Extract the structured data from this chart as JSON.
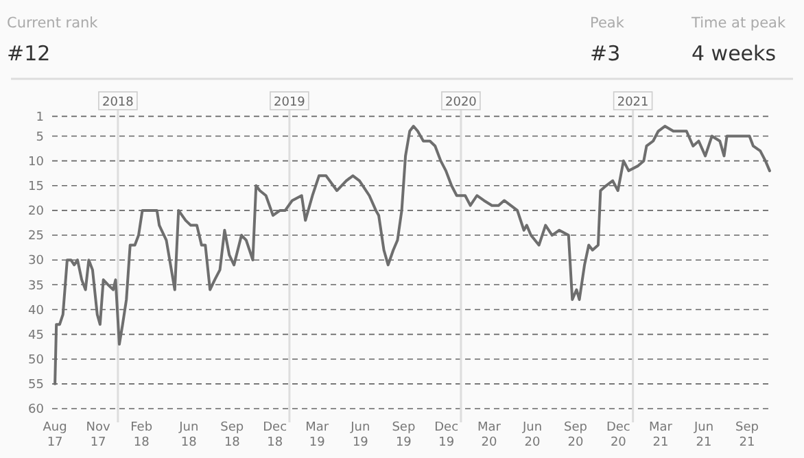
{
  "chart_data": {
    "type": "line",
    "annotations": [
      "Current rank",
      "#12",
      "Peak",
      "#3",
      "Time at peak",
      "4 weeks"
    ],
    "series": [
      {
        "color": "#6e6e6e",
        "x": [
          "2017-08-20",
          "2017-08-23",
          "2017-08-30",
          "2017-09-06",
          "2017-09-15",
          "2017-09-23",
          "2017-09-30",
          "2017-10-07",
          "2017-10-16",
          "2017-10-24",
          "2017-10-31",
          "2017-11-08",
          "2017-11-18",
          "2017-11-24",
          "2017-12-01",
          "2017-12-11",
          "2017-12-22",
          "2017-12-27",
          "2018-01-04",
          "2018-01-11",
          "2018-01-19",
          "2018-01-27",
          "2018-02-06",
          "2018-02-14",
          "2018-02-22",
          "2018-03-25",
          "2018-03-30",
          "2018-04-14",
          "2018-05-02",
          "2018-05-10",
          "2018-05-25",
          "2018-06-05",
          "2018-06-18",
          "2018-06-28",
          "2018-07-06",
          "2018-07-16",
          "2018-07-26",
          "2018-08-06",
          "2018-08-16",
          "2018-08-26",
          "2018-09-05",
          "2018-09-21",
          "2018-10-01",
          "2018-10-15",
          "2018-10-22",
          "2018-10-30",
          "2018-11-12",
          "2018-11-27",
          "2018-12-12",
          "2018-12-23",
          "2019-01-07",
          "2019-01-27",
          "2019-02-04",
          "2019-02-19",
          "2019-03-05",
          "2019-03-20",
          "2019-04-12",
          "2019-05-02",
          "2019-05-16",
          "2019-05-30",
          "2019-06-20",
          "2019-07-04",
          "2019-07-10",
          "2019-07-21",
          "2019-07-30",
          "2019-08-10",
          "2019-08-19",
          "2019-08-28",
          "2019-09-05",
          "2019-09-14",
          "2019-09-22",
          "2019-10-01",
          "2019-10-13",
          "2019-10-27",
          "2019-11-07",
          "2019-11-19",
          "2019-11-30",
          "2019-12-12",
          "2019-12-23",
          "2020-01-10",
          "2020-01-21",
          "2020-02-04",
          "2020-02-19",
          "2020-03-07",
          "2020-03-21",
          "2020-04-02",
          "2020-04-16",
          "2020-04-30",
          "2020-05-14",
          "2020-05-20",
          "2020-05-29",
          "2020-06-15",
          "2020-06-29",
          "2020-07-13",
          "2020-07-28",
          "2020-08-17",
          "2020-08-25",
          "2020-09-03",
          "2020-09-09",
          "2020-09-20",
          "2020-09-29",
          "2020-10-07",
          "2020-10-19",
          "2020-10-24",
          "2020-11-05",
          "2020-11-19",
          "2020-11-30",
          "2020-12-12",
          "2020-12-23",
          "2021-01-12",
          "2021-01-24",
          "2021-01-30",
          "2021-02-13",
          "2021-02-24",
          "2021-03-10",
          "2021-03-28",
          "2021-04-16",
          "2021-04-25",
          "2021-05-09",
          "2021-05-21",
          "2021-06-04",
          "2021-06-18",
          "2021-07-05",
          "2021-07-14",
          "2021-07-20",
          "2021-09-06",
          "2021-09-14",
          "2021-09-29",
          "2021-10-10",
          "2021-10-19"
        ],
        "values": [
          55,
          43,
          43,
          41,
          30,
          30,
          31,
          30,
          34,
          36,
          30,
          32,
          41,
          43,
          34,
          35,
          36,
          34,
          47,
          43,
          38,
          27,
          27,
          25,
          20,
          20,
          23,
          26,
          36,
          20,
          22,
          23,
          23,
          27,
          27,
          36,
          34,
          32,
          24,
          29,
          31,
          25,
          26,
          30,
          15,
          16,
          17,
          21,
          20,
          20,
          18,
          17,
          22,
          17,
          13,
          13,
          16,
          14,
          13,
          14,
          17,
          20,
          21,
          28,
          31,
          28,
          26,
          20,
          9,
          4,
          3,
          4,
          6,
          6,
          7,
          10,
          12,
          15,
          17,
          17,
          19,
          17,
          18,
          19,
          19,
          18,
          19,
          20,
          24,
          23,
          25,
          27,
          23,
          25,
          24,
          25,
          38,
          36,
          38,
          31,
          27,
          28,
          27,
          16,
          15,
          14,
          16,
          10,
          12,
          11,
          10,
          7,
          6,
          4,
          3,
          4,
          4,
          4,
          7,
          6,
          9,
          5,
          6,
          9,
          5,
          5,
          7,
          8,
          10,
          12
        ]
      }
    ],
    "xlim": [
      "2017-08-14",
      "2021-10-22"
    ],
    "xticks": [
      {
        "value": "2017-08-20",
        "label": "Aug 17"
      },
      {
        "value": "2017-11-20",
        "label": "Nov 17"
      },
      {
        "value": "2018-02-20",
        "label": "Feb 18"
      },
      {
        "value": "2018-06-01",
        "label": "Jun 18"
      },
      {
        "value": "2018-09-01",
        "label": "Sep 18"
      },
      {
        "value": "2018-12-01",
        "label": "Dec 18"
      },
      {
        "value": "2019-03-01",
        "label": "Mar 19"
      },
      {
        "value": "2019-06-01",
        "label": "Jun 19"
      },
      {
        "value": "2019-09-01",
        "label": "Sep 19"
      },
      {
        "value": "2019-12-01",
        "label": "Dec 19"
      },
      {
        "value": "2020-03-01",
        "label": "Mar 20"
      },
      {
        "value": "2020-06-01",
        "label": "Jun 20"
      },
      {
        "value": "2020-09-01",
        "label": "Sep 20"
      },
      {
        "value": "2020-12-01",
        "label": "Dec 20"
      },
      {
        "value": "2021-03-01",
        "label": "Mar 21"
      },
      {
        "value": "2021-06-01",
        "label": "Jun 21"
      },
      {
        "value": "2021-09-01",
        "label": "Sep 21"
      }
    ],
    "ylim": [
      60,
      1
    ],
    "yticks": [
      1,
      5,
      10,
      15,
      20,
      25,
      30,
      35,
      40,
      45,
      50,
      55,
      60
    ],
    "grid": "y",
    "ref_lines": [
      {
        "axis": "x",
        "value": "2018-01-01",
        "label": "2018"
      },
      {
        "axis": "x",
        "value": "2019-01-01",
        "label": "2019"
      },
      {
        "axis": "x",
        "value": "2020-01-01",
        "label": "2020"
      },
      {
        "axis": "x",
        "value": "2021-01-01",
        "label": "2021"
      }
    ]
  }
}
